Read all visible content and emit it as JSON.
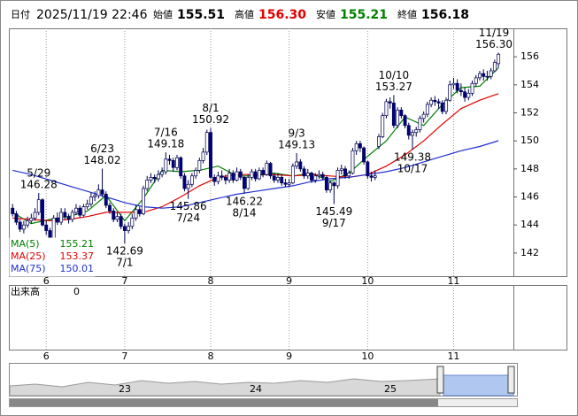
{
  "header": {
    "date_label": "日付",
    "datetime": "2025/11/19 22:46",
    "open_label": "始値",
    "open": "155.51",
    "high_label": "高値",
    "high": "156.30",
    "low_label": "安値",
    "low": "155.21",
    "close_label": "終値",
    "close": "156.18"
  },
  "chart_data": {
    "type": "candlestick",
    "ohlc": [
      [
        145.2,
        145.5,
        144.6,
        144.8
      ],
      [
        144.8,
        145.0,
        144.0,
        144.2
      ],
      [
        144.2,
        144.4,
        143.5,
        143.7
      ],
      [
        143.7,
        144.3,
        143.4,
        144.0
      ],
      [
        144.0,
        144.6,
        143.8,
        144.3
      ],
      [
        144.3,
        144.8,
        144.1,
        144.5
      ],
      [
        144.5,
        145.2,
        144.3,
        144.9
      ],
      [
        144.9,
        146.28,
        144.7,
        145.8
      ],
      [
        145.8,
        145.9,
        143.9,
        144.0
      ],
      [
        144.0,
        144.3,
        143.3,
        143.6
      ],
      [
        143.6,
        143.8,
        142.9,
        143.0
      ],
      [
        143.0,
        144.7,
        142.9,
        144.5
      ],
      [
        144.5,
        144.9,
        144.0,
        144.2
      ],
      [
        144.2,
        145.2,
        144.0,
        144.9
      ],
      [
        144.9,
        145.2,
        144.4,
        144.6
      ],
      [
        144.6,
        144.8,
        144.1,
        144.4
      ],
      [
        144.4,
        145.1,
        144.2,
        144.9
      ],
      [
        144.9,
        145.5,
        144.7,
        145.2
      ],
      [
        145.2,
        145.4,
        144.5,
        144.7
      ],
      [
        144.7,
        145.5,
        144.6,
        145.3
      ],
      [
        145.3,
        145.8,
        145.1,
        145.5
      ],
      [
        145.5,
        146.3,
        145.3,
        146.0
      ],
      [
        146.0,
        146.4,
        145.7,
        146.1
      ],
      [
        146.1,
        146.9,
        145.9,
        146.5
      ],
      [
        146.5,
        148.02,
        146.0,
        146.2
      ],
      [
        146.2,
        146.4,
        145.2,
        145.4
      ],
      [
        145.4,
        145.6,
        144.8,
        145.0
      ],
      [
        145.0,
        145.2,
        144.2,
        144.4
      ],
      [
        144.4,
        144.9,
        144.2,
        144.6
      ],
      [
        144.6,
        144.8,
        143.7,
        143.9
      ],
      [
        143.9,
        144.1,
        142.69,
        143.6
      ],
      [
        143.6,
        144.2,
        143.4,
        143.9
      ],
      [
        143.9,
        144.8,
        143.7,
        144.5
      ],
      [
        144.5,
        145.4,
        144.3,
        145.1
      ],
      [
        145.1,
        145.3,
        144.6,
        144.8
      ],
      [
        144.8,
        146.8,
        144.7,
        146.6
      ],
      [
        146.6,
        147.5,
        146.4,
        147.2
      ],
      [
        147.2,
        147.7,
        147.0,
        147.4
      ],
      [
        147.4,
        147.6,
        147.0,
        147.3
      ],
      [
        147.3,
        147.9,
        147.1,
        147.6
      ],
      [
        147.6,
        148.1,
        147.4,
        147.8
      ],
      [
        147.8,
        149.18,
        147.6,
        148.7
      ],
      [
        148.7,
        149.0,
        148.3,
        148.6
      ],
      [
        148.6,
        148.8,
        147.8,
        148.1
      ],
      [
        148.1,
        149.0,
        147.9,
        148.8
      ],
      [
        148.8,
        148.9,
        147.3,
        147.5
      ],
      [
        147.5,
        147.7,
        146.4,
        146.6
      ],
      [
        146.6,
        147.2,
        145.86,
        146.9
      ],
      [
        146.9,
        147.7,
        146.7,
        147.5
      ],
      [
        147.5,
        148.1,
        147.3,
        147.9
      ],
      [
        147.9,
        148.8,
        147.7,
        148.6
      ],
      [
        148.6,
        149.5,
        148.4,
        149.2
      ],
      [
        149.2,
        150.8,
        149.0,
        150.6
      ],
      [
        150.6,
        150.92,
        147.3,
        147.4
      ],
      [
        147.4,
        147.6,
        146.8,
        147.1
      ],
      [
        147.1,
        147.8,
        146.9,
        147.5
      ],
      [
        147.5,
        147.9,
        147.2,
        147.4
      ],
      [
        147.4,
        147.6,
        146.9,
        147.2
      ],
      [
        147.2,
        148.0,
        147.0,
        147.7
      ],
      [
        147.7,
        147.9,
        147.0,
        147.2
      ],
      [
        147.2,
        148.1,
        147.1,
        147.8
      ],
      [
        147.8,
        148.0,
        147.2,
        147.4
      ],
      [
        147.4,
        147.5,
        146.22,
        146.6
      ],
      [
        146.6,
        147.6,
        146.5,
        147.4
      ],
      [
        147.4,
        148.0,
        147.2,
        147.8
      ],
      [
        147.8,
        148.0,
        147.1,
        147.3
      ],
      [
        147.3,
        148.1,
        147.2,
        147.9
      ],
      [
        147.9,
        148.1,
        147.4,
        147.6
      ],
      [
        147.6,
        148.6,
        147.5,
        148.4
      ],
      [
        148.4,
        148.5,
        147.3,
        147.5
      ],
      [
        147.5,
        147.7,
        147.0,
        147.2
      ],
      [
        147.2,
        147.7,
        147.0,
        147.4
      ],
      [
        147.4,
        147.6,
        146.8,
        147.0
      ],
      [
        147.0,
        147.3,
        146.7,
        146.9
      ],
      [
        146.9,
        147.3,
        146.7,
        147.0
      ],
      [
        147.0,
        148.4,
        146.9,
        148.2
      ],
      [
        148.2,
        149.13,
        148.0,
        148.5
      ],
      [
        148.5,
        148.7,
        147.8,
        148.0
      ],
      [
        148.0,
        148.2,
        147.3,
        147.5
      ],
      [
        147.5,
        148.0,
        147.3,
        147.7
      ],
      [
        147.7,
        147.8,
        147.0,
        147.2
      ],
      [
        147.2,
        147.7,
        147.0,
        147.5
      ],
      [
        147.5,
        147.9,
        147.3,
        147.6
      ],
      [
        147.6,
        147.8,
        147.2,
        147.4
      ],
      [
        147.4,
        147.5,
        146.3,
        146.5
      ],
      [
        146.5,
        147.2,
        146.3,
        147.0
      ],
      [
        147.0,
        147.1,
        145.49,
        146.8
      ],
      [
        146.8,
        148.1,
        146.6,
        147.9
      ],
      [
        147.9,
        148.3,
        147.6,
        148.0
      ],
      [
        148.0,
        148.2,
        147.3,
        147.5
      ],
      [
        147.5,
        147.9,
        147.3,
        147.7
      ],
      [
        147.7,
        149.5,
        147.6,
        149.3
      ],
      [
        149.3,
        150.0,
        149.0,
        149.8
      ],
      [
        149.8,
        150.0,
        149.2,
        149.5
      ],
      [
        149.5,
        149.6,
        148.3,
        148.5
      ],
      [
        148.5,
        148.6,
        147.3,
        147.5
      ],
      [
        147.5,
        147.8,
        147.1,
        147.4
      ],
      [
        147.4,
        147.9,
        147.2,
        147.5
      ],
      [
        149.6,
        150.5,
        149.4,
        150.3
      ],
      [
        150.3,
        152.0,
        150.2,
        151.8
      ],
      [
        151.8,
        153.0,
        151.6,
        152.8
      ],
      [
        152.8,
        153.1,
        152.3,
        152.7
      ],
      [
        152.7,
        153.27,
        150.9,
        151.1
      ],
      [
        151.1,
        152.4,
        150.9,
        152.2
      ],
      [
        152.2,
        152.4,
        151.6,
        151.8
      ],
      [
        151.8,
        151.9,
        150.9,
        151.1
      ],
      [
        151.1,
        151.3,
        150.1,
        150.4
      ],
      [
        150.4,
        150.8,
        149.38,
        150.6
      ],
      [
        150.6,
        151.0,
        150.3,
        150.8
      ],
      [
        150.8,
        151.8,
        150.6,
        151.6
      ],
      [
        151.6,
        152.1,
        151.3,
        151.9
      ],
      [
        151.9,
        152.8,
        151.7,
        152.6
      ],
      [
        152.6,
        153.1,
        152.4,
        152.9
      ],
      [
        152.9,
        153.2,
        152.5,
        152.8
      ],
      [
        152.8,
        153.0,
        152.3,
        152.7
      ],
      [
        152.7,
        152.9,
        151.9,
        152.1
      ],
      [
        152.1,
        153.1,
        151.9,
        152.9
      ],
      [
        152.9,
        154.3,
        152.8,
        154.0
      ],
      [
        154.0,
        154.5,
        153.7,
        154.1
      ],
      [
        154.1,
        154.4,
        153.4,
        153.6
      ],
      [
        153.6,
        154.1,
        153.2,
        153.5
      ],
      [
        153.5,
        153.8,
        152.8,
        153.1
      ],
      [
        153.1,
        153.7,
        152.9,
        153.4
      ],
      [
        153.4,
        154.3,
        153.2,
        154.1
      ],
      [
        154.1,
        154.7,
        153.9,
        154.5
      ],
      [
        154.5,
        155.0,
        154.3,
        154.8
      ],
      [
        154.8,
        155.1,
        154.3,
        154.6
      ],
      [
        154.6,
        155.0,
        154.3,
        154.6
      ],
      [
        154.6,
        155.2,
        154.4,
        155.0
      ],
      [
        155.0,
        155.8,
        154.9,
        155.6
      ],
      [
        155.51,
        156.3,
        155.21,
        156.18
      ]
    ],
    "up_color": "#ffffff",
    "down_color": "#000080",
    "edge_color": "#000050",
    "series": [
      {
        "name": "MA(5)",
        "color": "#008000",
        "x": [
          0,
          5,
          10,
          15,
          20,
          25,
          30,
          35,
          40,
          45,
          50,
          55,
          60,
          65,
          70,
          75,
          80,
          85,
          90,
          95,
          100,
          105,
          110,
          115,
          120,
          125,
          130
        ],
        "values": [
          144.9,
          144.1,
          144.4,
          144.6,
          145.0,
          146.1,
          144.3,
          145.9,
          147.9,
          147.8,
          147.9,
          148.2,
          147.5,
          147.5,
          147.7,
          147.5,
          147.7,
          147.1,
          147.7,
          148.9,
          150.0,
          151.7,
          151.1,
          152.6,
          153.8,
          153.9,
          155.21
        ]
      },
      {
        "name": "MA(25)",
        "color": "#e00000",
        "x": [
          0,
          5,
          10,
          15,
          20,
          25,
          30,
          35,
          40,
          45,
          50,
          55,
          60,
          65,
          70,
          75,
          80,
          85,
          90,
          95,
          100,
          105,
          110,
          115,
          120,
          125,
          130
        ],
        "values": [
          144.5,
          144.4,
          144.3,
          144.4,
          144.6,
          144.9,
          144.9,
          144.9,
          145.3,
          146.0,
          146.8,
          147.4,
          147.6,
          147.6,
          147.6,
          147.5,
          147.6,
          147.5,
          147.4,
          147.6,
          148.2,
          149.0,
          150.0,
          151.2,
          152.3,
          152.9,
          153.37
        ]
      },
      {
        "name": "MA(75)",
        "color": "#2030d0",
        "x": [
          0,
          5,
          10,
          15,
          20,
          25,
          30,
          35,
          40,
          45,
          50,
          55,
          60,
          65,
          70,
          75,
          80,
          85,
          90,
          95,
          100,
          105,
          110,
          115,
          120,
          125,
          130
        ],
        "values": [
          147.9,
          147.6,
          147.2,
          146.8,
          146.4,
          146.0,
          145.6,
          145.3,
          145.2,
          145.3,
          145.6,
          145.9,
          146.2,
          146.4,
          146.6,
          146.8,
          147.1,
          147.3,
          147.4,
          147.6,
          147.8,
          148.1,
          148.5,
          148.9,
          149.3,
          149.6,
          150.01
        ]
      }
    ],
    "annotations": [
      {
        "candle": 7,
        "date": "5/29",
        "price": 146.28
      },
      {
        "candle": 24,
        "date": "6/23",
        "price": 148.02
      },
      {
        "candle": 30,
        "date": "7/1",
        "price": 142.69
      },
      {
        "candle": 41,
        "date": "7/16",
        "price": 149.18
      },
      {
        "candle": 47,
        "date": "7/24",
        "price": 145.86
      },
      {
        "candle": 53,
        "date": "8/1",
        "price": 150.92
      },
      {
        "candle": 62,
        "date": "8/14",
        "price": 146.22
      },
      {
        "candle": 76,
        "date": "9/3",
        "price": 149.13
      },
      {
        "candle": 86,
        "date": "9/17",
        "price": 145.49
      },
      {
        "candle": 102,
        "date": "10/10",
        "price": 153.27
      },
      {
        "candle": 107,
        "date": "10/17",
        "price": 149.38
      },
      {
        "candle": 130,
        "date": "11/19",
        "price": {
          "value": 156.3,
          "label": "156.30"
        }
      }
    ],
    "xlim": [
      -1,
      134
    ],
    "xticks": [
      {
        "value": 9,
        "label": "6"
      },
      {
        "value": 30,
        "label": "7"
      },
      {
        "value": 53,
        "label": "8"
      },
      {
        "value": 74,
        "label": "9"
      },
      {
        "value": 95,
        "label": "10"
      },
      {
        "value": 118,
        "label": "11"
      }
    ],
    "ylim": [
      140.35,
      158.03
    ],
    "yticks": [
      142,
      144,
      146,
      148,
      150,
      152,
      154,
      156
    ]
  },
  "volume": {
    "label": "出来高",
    "yticks": [
      0
    ]
  },
  "navigator": {
    "labels": [
      "23",
      "24",
      "25"
    ]
  }
}
